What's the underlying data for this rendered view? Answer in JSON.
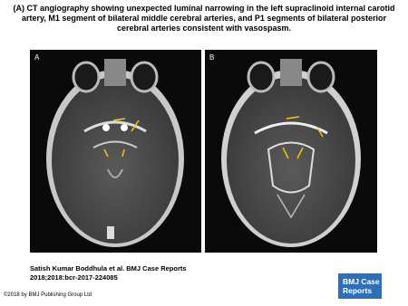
{
  "header": {
    "title": "(A) CT angiography showing unexpected luminal narrowing in the left supraclinoid internal carotid artery, M1 segment of bilateral middle cerebral arteries, and P1 segments of bilateral posterior cerebral arteries consistent with vasospasm."
  },
  "panels": [
    {
      "label": "A"
    },
    {
      "label": "B"
    }
  ],
  "citation": {
    "authors": "Satish Kumar Boddhula et al. BMJ Case Reports",
    "reference": "2018;2018:bcr-2017-224085"
  },
  "footer": {
    "copyright": "©2018 by BMJ Publishing Group Ltd"
  },
  "logo": {
    "line1": "BMJ Case",
    "line2": "Reports"
  }
}
